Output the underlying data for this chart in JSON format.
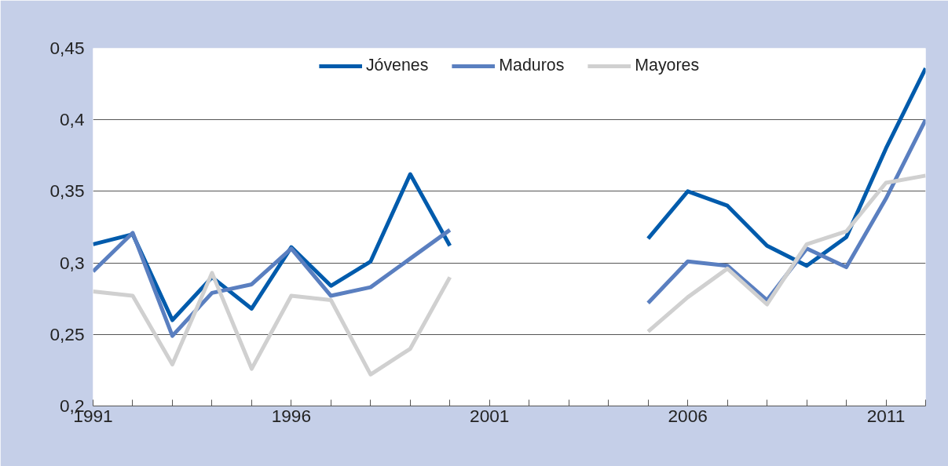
{
  "chart_data": {
    "type": "line",
    "x": [
      1991,
      1992,
      1993,
      1994,
      1995,
      1996,
      1997,
      1998,
      1999,
      2000,
      2001,
      2002,
      2003,
      2004,
      2005,
      2006,
      2007,
      2008,
      2009,
      2010,
      2011,
      2012
    ],
    "series": [
      {
        "name": "Jóvenes",
        "color": "#005bac",
        "values": [
          0.313,
          0.32,
          0.26,
          0.29,
          0.268,
          0.311,
          0.284,
          0.301,
          0.362,
          0.312,
          null,
          null,
          null,
          null,
          0.317,
          0.35,
          0.34,
          0.312,
          0.298,
          0.318,
          0.38,
          0.436
        ]
      },
      {
        "name": "Maduros",
        "color": "#5a7fc0",
        "values": [
          0.294,
          0.321,
          0.249,
          0.279,
          0.285,
          0.31,
          0.277,
          0.283,
          0.303,
          0.323,
          null,
          null,
          null,
          null,
          0.272,
          0.301,
          0.298,
          0.274,
          0.31,
          0.297,
          0.345,
          0.4
        ]
      },
      {
        "name": "Mayores",
        "color": "#d0d0d0",
        "values": [
          0.28,
          0.277,
          0.229,
          0.293,
          0.226,
          0.277,
          0.274,
          0.222,
          0.24,
          0.29,
          null,
          null,
          null,
          null,
          0.252,
          0.276,
          0.296,
          0.271,
          0.313,
          0.322,
          0.356,
          0.361
        ]
      }
    ],
    "xlim": [
      1991,
      2012
    ],
    "xticks": [
      1991,
      {
        "value": 1992,
        "label": null
      },
      {
        "value": 1993,
        "label": null
      },
      {
        "value": 1994,
        "label": null
      },
      {
        "value": 1995,
        "label": null
      },
      1996,
      {
        "value": 1997,
        "label": null
      },
      {
        "value": 1998,
        "label": null
      },
      {
        "value": 1999,
        "label": null
      },
      {
        "value": 2000,
        "label": null
      },
      2001,
      {
        "value": 2002,
        "label": null
      },
      {
        "value": 2003,
        "label": null
      },
      {
        "value": 2004,
        "label": null
      },
      {
        "value": 2005,
        "label": null
      },
      2006,
      {
        "value": 2007,
        "label": null
      },
      {
        "value": 2008,
        "label": null
      },
      {
        "value": 2009,
        "label": null
      },
      {
        "value": 2010,
        "label": null
      },
      2011,
      {
        "value": 2012,
        "label": null
      }
    ],
    "ylim": [
      0.2,
      0.45
    ],
    "yticks": [
      {
        "value": 0.2,
        "label": "0,2"
      },
      {
        "value": 0.25,
        "label": "0,25"
      },
      {
        "value": 0.3,
        "label": "0,3"
      },
      {
        "value": 0.35,
        "label": "0,35"
      },
      {
        "value": 0.4,
        "label": "0,4"
      },
      {
        "value": 0.45,
        "label": "0,45"
      }
    ],
    "grid": "y",
    "legend": "top",
    "marker": "none",
    "line_style": "solid"
  }
}
